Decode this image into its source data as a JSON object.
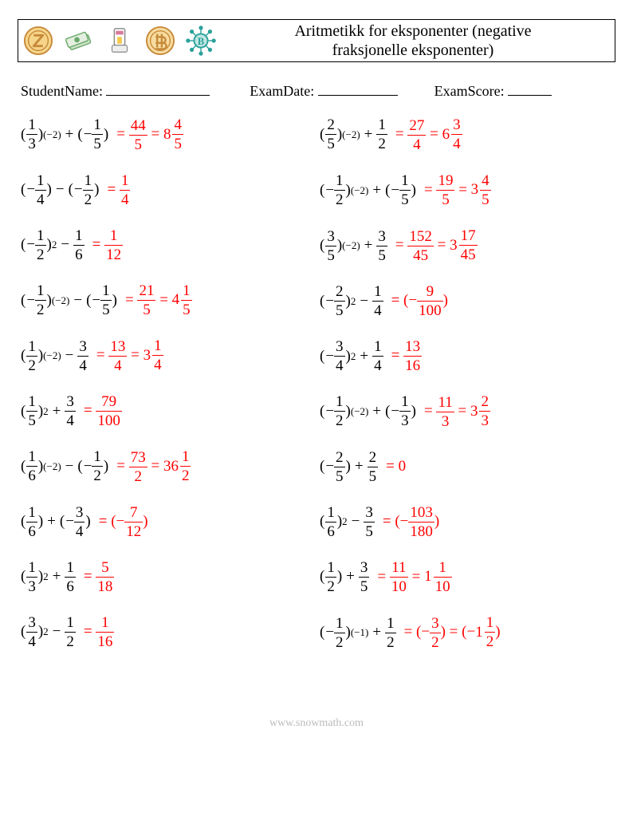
{
  "header": {
    "title_l1": "Aritmetikk for eksponenter (negative",
    "title_l2": "fraksjonelle eksponenter)"
  },
  "info": {
    "student_label": "StudentName:",
    "student_line_w": 130,
    "date_label": "ExamDate:",
    "date_line_w": 100,
    "score_label": "ExamScore:",
    "score_line_w": 55
  },
  "icons": {
    "size": 38,
    "gold": "#e0a638",
    "bronze": "#c78a3a",
    "teal": "#2aa19a",
    "green": "#6aa86a",
    "pink": "#d87a9a",
    "blue": "#4a80c0",
    "grey": "#888"
  },
  "problems": {
    "left": [
      {
        "term1": {
          "neg": false,
          "num": "1",
          "den": "3",
          "exp": "(−2)"
        },
        "op": "+",
        "term2": {
          "neg": true,
          "num": "1",
          "den": "5",
          "exp": null
        },
        "ans": [
          {
            "t": "= "
          },
          {
            "frac": {
              "num": "44",
              "den": "5"
            }
          },
          {
            "t": " = "
          },
          {
            "mix": {
              "w": "8",
              "num": "4",
              "den": "5"
            }
          }
        ]
      },
      {
        "term1": {
          "neg": true,
          "num": "1",
          "den": "4",
          "exp": null
        },
        "op": "−",
        "term2": {
          "neg": true,
          "num": "1",
          "den": "2",
          "exp": null
        },
        "ans": [
          {
            "t": "= "
          },
          {
            "frac": {
              "num": "1",
              "den": "4"
            }
          }
        ]
      },
      {
        "term1": {
          "neg": true,
          "num": "1",
          "den": "2",
          "exp": "2"
        },
        "op": "−",
        "term2": {
          "neg": false,
          "noparen": true,
          "num": "1",
          "den": "6",
          "exp": null
        },
        "ans": [
          {
            "t": "= "
          },
          {
            "frac": {
              "num": "1",
              "den": "12"
            }
          }
        ]
      },
      {
        "term1": {
          "neg": true,
          "num": "1",
          "den": "2",
          "exp": "(−2)"
        },
        "op": "−",
        "term2": {
          "neg": true,
          "num": "1",
          "den": "5",
          "exp": null
        },
        "ans": [
          {
            "t": "= "
          },
          {
            "frac": {
              "num": "21",
              "den": "5"
            }
          },
          {
            "t": " = "
          },
          {
            "mix": {
              "w": "4",
              "num": "1",
              "den": "5"
            }
          }
        ]
      },
      {
        "term1": {
          "neg": false,
          "num": "1",
          "den": "2",
          "exp": "(−2)"
        },
        "op": "−",
        "term2": {
          "neg": false,
          "noparen": true,
          "num": "3",
          "den": "4",
          "exp": null
        },
        "ans": [
          {
            "t": "= "
          },
          {
            "frac": {
              "num": "13",
              "den": "4"
            }
          },
          {
            "t": " = "
          },
          {
            "mix": {
              "w": "3",
              "num": "1",
              "den": "4"
            }
          }
        ]
      },
      {
        "term1": {
          "neg": false,
          "num": "1",
          "den": "5",
          "exp": "2"
        },
        "op": "+",
        "term2": {
          "neg": false,
          "noparen": true,
          "num": "3",
          "den": "4",
          "exp": null
        },
        "ans": [
          {
            "t": "= "
          },
          {
            "frac": {
              "num": "79",
              "den": "100"
            }
          }
        ]
      },
      {
        "term1": {
          "neg": false,
          "num": "1",
          "den": "6",
          "exp": "(−2)"
        },
        "op": "−",
        "term2": {
          "neg": true,
          "num": "1",
          "den": "2",
          "exp": null
        },
        "ans": [
          {
            "t": "= "
          },
          {
            "frac": {
              "num": "73",
              "den": "2"
            }
          },
          {
            "t": " = "
          },
          {
            "mix": {
              "w": "36",
              "num": "1",
              "den": "2"
            }
          }
        ]
      },
      {
        "term1": {
          "neg": false,
          "num": "1",
          "den": "6",
          "exp": null
        },
        "op": "+",
        "term2": {
          "neg": true,
          "num": "3",
          "den": "4",
          "exp": null
        },
        "ans": [
          {
            "t": "= (−"
          },
          {
            "frac": {
              "num": "7",
              "den": "12"
            }
          },
          {
            "t": ")"
          }
        ]
      },
      {
        "term1": {
          "neg": false,
          "num": "1",
          "den": "3",
          "exp": "2"
        },
        "op": "+",
        "term2": {
          "neg": false,
          "noparen": true,
          "num": "1",
          "den": "6",
          "exp": null
        },
        "ans": [
          {
            "t": "= "
          },
          {
            "frac": {
              "num": "5",
              "den": "18"
            }
          }
        ]
      },
      {
        "term1": {
          "neg": false,
          "num": "3",
          "den": "4",
          "exp": "2"
        },
        "op": "−",
        "term2": {
          "neg": false,
          "noparen": true,
          "num": "1",
          "den": "2",
          "exp": null
        },
        "ans": [
          {
            "t": "= "
          },
          {
            "frac": {
              "num": "1",
              "den": "16"
            }
          }
        ]
      }
    ],
    "right": [
      {
        "term1": {
          "neg": false,
          "num": "2",
          "den": "5",
          "exp": "(−2)"
        },
        "op": "+",
        "term2": {
          "neg": false,
          "noparen": true,
          "num": "1",
          "den": "2",
          "exp": null
        },
        "ans": [
          {
            "t": "= "
          },
          {
            "frac": {
              "num": "27",
              "den": "4"
            }
          },
          {
            "t": " = "
          },
          {
            "mix": {
              "w": "6",
              "num": "3",
              "den": "4"
            }
          }
        ]
      },
      {
        "term1": {
          "neg": true,
          "num": "1",
          "den": "2",
          "exp": "(−2)"
        },
        "op": "+",
        "term2": {
          "neg": true,
          "num": "1",
          "den": "5",
          "exp": null
        },
        "ans": [
          {
            "t": "= "
          },
          {
            "frac": {
              "num": "19",
              "den": "5"
            }
          },
          {
            "t": " = "
          },
          {
            "mix": {
              "w": "3",
              "num": "4",
              "den": "5"
            }
          }
        ]
      },
      {
        "term1": {
          "neg": false,
          "num": "3",
          "den": "5",
          "exp": "(−2)"
        },
        "op": "+",
        "term2": {
          "neg": false,
          "noparen": true,
          "num": "3",
          "den": "5",
          "exp": null
        },
        "ans": [
          {
            "t": "= "
          },
          {
            "frac": {
              "num": "152",
              "den": "45"
            }
          },
          {
            "t": " = "
          },
          {
            "mix": {
              "w": "3",
              "num": "17",
              "den": "45"
            }
          }
        ]
      },
      {
        "term1": {
          "neg": true,
          "num": "2",
          "den": "5",
          "exp": "2"
        },
        "op": "−",
        "term2": {
          "neg": false,
          "noparen": true,
          "num": "1",
          "den": "4",
          "exp": null
        },
        "ans": [
          {
            "t": "= (−"
          },
          {
            "frac": {
              "num": "9",
              "den": "100"
            }
          },
          {
            "t": ")"
          }
        ]
      },
      {
        "term1": {
          "neg": true,
          "num": "3",
          "den": "4",
          "exp": "2"
        },
        "op": "+",
        "term2": {
          "neg": false,
          "noparen": true,
          "num": "1",
          "den": "4",
          "exp": null
        },
        "ans": [
          {
            "t": "= "
          },
          {
            "frac": {
              "num": "13",
              "den": "16"
            }
          }
        ]
      },
      {
        "term1": {
          "neg": true,
          "num": "1",
          "den": "2",
          "exp": "(−2)"
        },
        "op": "+",
        "term2": {
          "neg": true,
          "num": "1",
          "den": "3",
          "exp": null
        },
        "ans": [
          {
            "t": "= "
          },
          {
            "frac": {
              "num": "11",
              "den": "3"
            }
          },
          {
            "t": " = "
          },
          {
            "mix": {
              "w": "3",
              "num": "2",
              "den": "3"
            }
          }
        ]
      },
      {
        "term1": {
          "neg": true,
          "num": "2",
          "den": "5",
          "exp": null
        },
        "op": "+",
        "term2": {
          "neg": false,
          "noparen": true,
          "num": "2",
          "den": "5",
          "exp": null
        },
        "ans": [
          {
            "t": "= "
          },
          {
            "t": "0"
          }
        ]
      },
      {
        "term1": {
          "neg": false,
          "num": "1",
          "den": "6",
          "exp": "2"
        },
        "op": "−",
        "term2": {
          "neg": false,
          "noparen": true,
          "num": "3",
          "den": "5",
          "exp": null
        },
        "ans": [
          {
            "t": "= (−"
          },
          {
            "frac": {
              "num": "103",
              "den": "180"
            }
          },
          {
            "t": ")"
          }
        ]
      },
      {
        "term1": {
          "neg": false,
          "num": "1",
          "den": "2",
          "exp": null
        },
        "op": "+",
        "term2": {
          "neg": false,
          "noparen": true,
          "num": "3",
          "den": "5",
          "exp": null
        },
        "ans": [
          {
            "t": "= "
          },
          {
            "frac": {
              "num": "11",
              "den": "10"
            }
          },
          {
            "t": " = "
          },
          {
            "mix": {
              "w": "1",
              "num": "1",
              "den": "10"
            }
          }
        ]
      },
      {
        "term1": {
          "neg": true,
          "num": "1",
          "den": "2",
          "exp": "(−1)"
        },
        "op": "+",
        "term2": {
          "neg": false,
          "noparen": true,
          "num": "1",
          "den": "2",
          "exp": null
        },
        "ans": [
          {
            "t": "= (−"
          },
          {
            "frac": {
              "num": "3",
              "den": "2"
            }
          },
          {
            "t": ") = (−"
          },
          {
            "mix": {
              "w": "1",
              "num": "1",
              "den": "2"
            }
          },
          {
            "t": ")"
          }
        ]
      }
    ]
  },
  "footer": "www.snowmath.com"
}
